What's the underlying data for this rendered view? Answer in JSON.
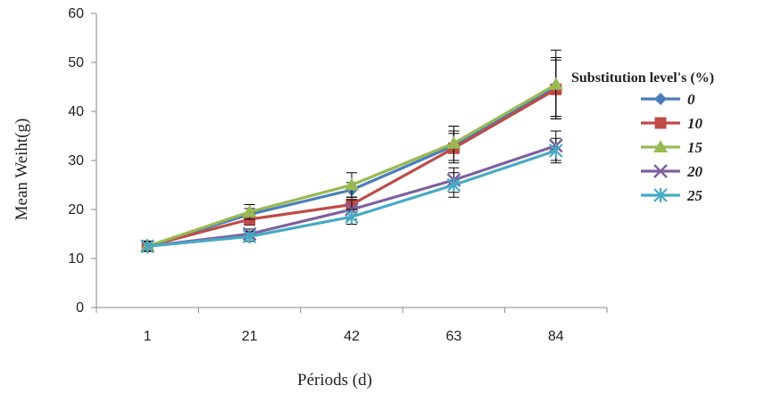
{
  "chart_data": {
    "type": "line",
    "title": "",
    "xlabel": "Périods (d)",
    "ylabel": "Mean Weiht(g)",
    "categories": [
      "1",
      "21",
      "42",
      "63",
      "84"
    ],
    "ylim": [
      0,
      60
    ],
    "yticks": [
      "0",
      "10",
      "20",
      "30",
      "40",
      "50",
      "60"
    ],
    "grid": false,
    "legend": {
      "title": "Substitution level's (%)",
      "placement": "right"
    },
    "series": [
      {
        "name": "0",
        "color": "#4A7EBB",
        "marker": "diamond",
        "values": [
          12.5,
          19,
          24,
          33,
          45
        ],
        "errors": [
          1,
          1.2,
          1.5,
          3,
          6
        ]
      },
      {
        "name": "10",
        "color": "#BE4B48",
        "marker": "square",
        "values": [
          12.5,
          18,
          21,
          32.5,
          44.5
        ],
        "errors": [
          1,
          1.2,
          1.5,
          3,
          6
        ]
      },
      {
        "name": "15",
        "color": "#98B954",
        "marker": "triangle",
        "values": [
          12.5,
          19.5,
          25,
          33.5,
          45.5
        ],
        "errors": [
          1,
          1.5,
          2.5,
          3.5,
          7
        ]
      },
      {
        "name": "20",
        "color": "#7D60A0",
        "marker": "x",
        "values": [
          12.5,
          15,
          20,
          26,
          33
        ],
        "errors": [
          1,
          1,
          2,
          2.5,
          3
        ]
      },
      {
        "name": "25",
        "color": "#46AAC5",
        "marker": "star",
        "values": [
          12.5,
          14.5,
          18.5,
          25,
          32
        ],
        "errors": [
          1,
          1,
          1.5,
          2.5,
          2.5
        ]
      }
    ]
  }
}
